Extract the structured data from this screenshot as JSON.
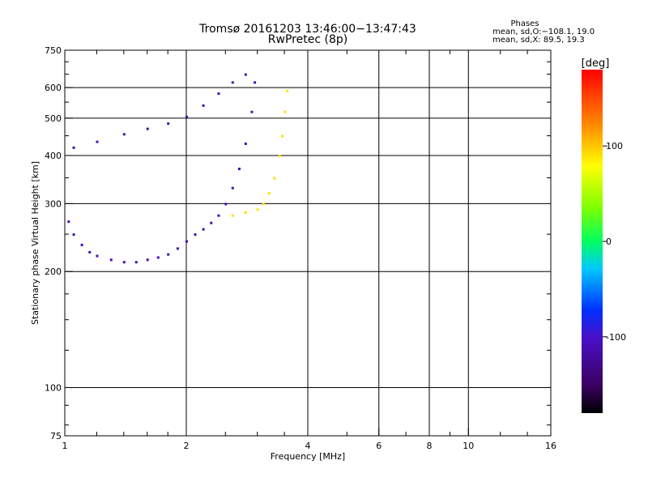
{
  "chart_data": {
    "type": "scatter",
    "title": "Tromsø 20161203 13:46:00−13:47:43",
    "subtitle": "RwPretec (8p)",
    "xlabel": "Frequency [MHz]",
    "ylabel": "Stationary phase Virtual Height [km]",
    "x_scale": "log2",
    "y_scale": "log",
    "xlim": [
      1,
      16
    ],
    "ylim": [
      75,
      750
    ],
    "x_ticks": [
      1,
      2,
      4,
      6,
      8,
      10,
      16
    ],
    "x_tick_labels": [
      "1",
      "2",
      "4",
      "6",
      "8",
      "10",
      "16"
    ],
    "y_ticks": [
      75,
      100,
      200,
      300,
      400,
      500,
      600,
      750
    ],
    "y_tick_labels": [
      "75",
      "100",
      "200",
      "300",
      "400",
      "500",
      "600",
      "750"
    ],
    "grid": true,
    "colorbar": {
      "label": "[deg]",
      "range": [
        -180,
        180
      ],
      "ticks": [
        100,
        0,
        -100
      ],
      "tick_labels": [
        "100",
        "0",
        "-100"
      ],
      "colormap": "rainbow (black-purple-blue-cyan-green-yellow-orange-red)"
    },
    "stats": {
      "heading": "Phases",
      "line1": "mean, sd,O:−108.1, 19.0",
      "line2": "mean, sd,X:  89.5, 19.3"
    },
    "series": [
      {
        "name": "O",
        "phase_deg": -110,
        "note": "ordinary-mode trace: spread F near 200–300 km at 1–2 MHz rising to ~650 km near 2.9 MHz",
        "points": [
          [
            1.02,
            270
          ],
          [
            1.05,
            250
          ],
          [
            1.1,
            235
          ],
          [
            1.15,
            225
          ],
          [
            1.2,
            220
          ],
          [
            1.3,
            215
          ],
          [
            1.4,
            212
          ],
          [
            1.5,
            212
          ],
          [
            1.6,
            215
          ],
          [
            1.7,
            218
          ],
          [
            1.8,
            222
          ],
          [
            1.9,
            230
          ],
          [
            2.0,
            240
          ],
          [
            2.1,
            250
          ],
          [
            2.2,
            258
          ],
          [
            2.3,
            268
          ],
          [
            2.4,
            280
          ],
          [
            2.5,
            300
          ],
          [
            2.6,
            330
          ],
          [
            2.7,
            370
          ],
          [
            2.8,
            430
          ],
          [
            2.9,
            520
          ],
          [
            2.95,
            620
          ],
          [
            1.05,
            420
          ],
          [
            1.2,
            435
          ],
          [
            1.4,
            455
          ],
          [
            1.6,
            470
          ],
          [
            1.8,
            485
          ],
          [
            2.0,
            505
          ],
          [
            2.2,
            540
          ],
          [
            2.4,
            580
          ],
          [
            2.6,
            620
          ],
          [
            2.8,
            650
          ]
        ]
      },
      {
        "name": "X",
        "phase_deg": 90,
        "note": "extraordinary-mode trace: ~280 km near 2.7 MHz rising to ~600 km near 3.5 MHz",
        "points": [
          [
            2.6,
            280
          ],
          [
            2.8,
            285
          ],
          [
            3.0,
            290
          ],
          [
            3.1,
            300
          ],
          [
            3.2,
            320
          ],
          [
            3.3,
            350
          ],
          [
            3.4,
            400
          ],
          [
            3.45,
            450
          ],
          [
            3.5,
            520
          ],
          [
            3.55,
            590
          ]
        ]
      }
    ]
  }
}
